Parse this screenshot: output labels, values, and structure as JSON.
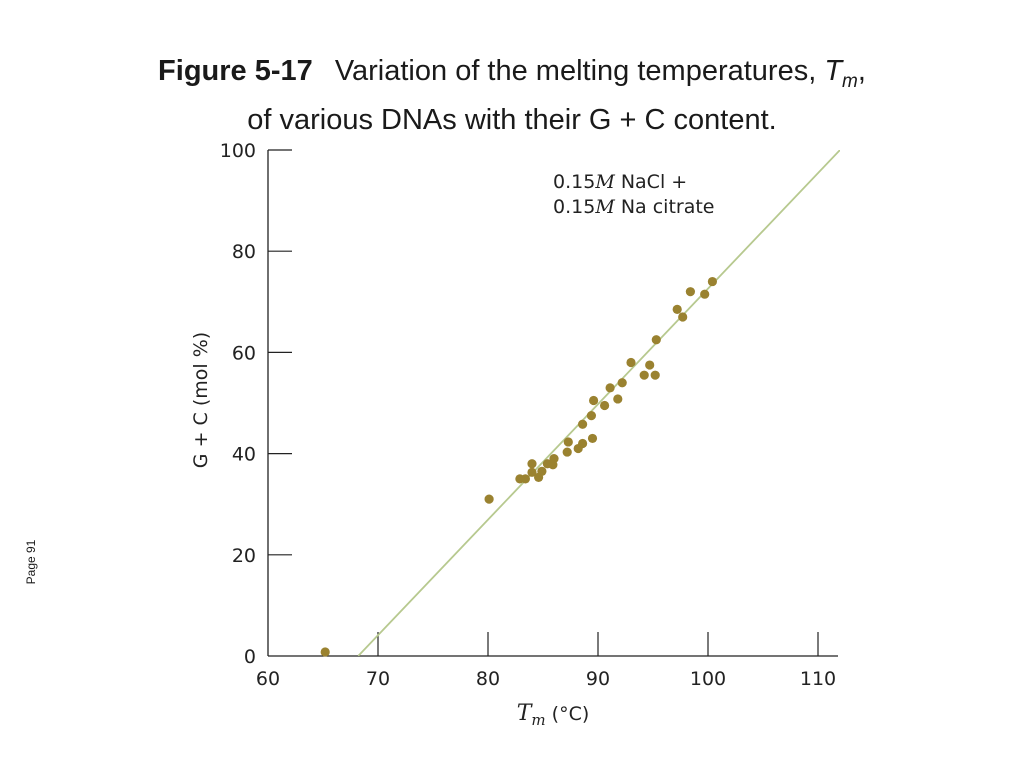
{
  "caption": {
    "label": "Figure 5-17",
    "text_pre": "Variation of the melting temperatures,",
    "tm_symbol": "T",
    "tm_subscript": "m",
    "text_post_comma": ",",
    "line2": "of various DNAs with their G + C content."
  },
  "page_label": "Page 91",
  "chart_data": {
    "type": "scatter",
    "title": "",
    "xlabel": "Tm (°C)",
    "xlabel_parts": {
      "symbol": "T",
      "subscript": "m",
      "unit": " (°C)"
    },
    "ylabel": "G + C (mol %)",
    "xlim": [
      60,
      112
    ],
    "ylim": [
      0,
      100
    ],
    "x_ticks": [
      60,
      70,
      80,
      90,
      100,
      110
    ],
    "y_ticks": [
      0,
      20,
      40,
      60,
      80,
      100
    ],
    "grid": false,
    "legend": "none",
    "annotation": {
      "line1": {
        "num": "0.15",
        "unit": "M",
        "rest": " NaCl +"
      },
      "line2": {
        "num": "0.15",
        "unit": "M",
        "rest": " Na citrate"
      }
    },
    "fit_line": {
      "x": [
        68.2,
        112
      ],
      "y": [
        0,
        100
      ]
    },
    "colors": {
      "points": "#9a8230",
      "fit_line": "#b7c98f",
      "axis": "#222222"
    },
    "points": [
      {
        "x": 65.2,
        "y": 0.8
      },
      {
        "x": 80.1,
        "y": 31.0
      },
      {
        "x": 82.9,
        "y": 35.0
      },
      {
        "x": 83.4,
        "y": 35.0
      },
      {
        "x": 84.0,
        "y": 36.3
      },
      {
        "x": 84.0,
        "y": 38.0
      },
      {
        "x": 84.6,
        "y": 35.3
      },
      {
        "x": 84.9,
        "y": 36.5
      },
      {
        "x": 85.4,
        "y": 38.0
      },
      {
        "x": 85.9,
        "y": 37.8
      },
      {
        "x": 86.0,
        "y": 39.0
      },
      {
        "x": 87.2,
        "y": 40.3
      },
      {
        "x": 87.3,
        "y": 42.3
      },
      {
        "x": 88.2,
        "y": 41.0
      },
      {
        "x": 88.6,
        "y": 42.0
      },
      {
        "x": 88.6,
        "y": 45.8
      },
      {
        "x": 89.5,
        "y": 43.0
      },
      {
        "x": 89.4,
        "y": 47.5
      },
      {
        "x": 89.6,
        "y": 50.5
      },
      {
        "x": 90.6,
        "y": 49.5
      },
      {
        "x": 91.1,
        "y": 53.0
      },
      {
        "x": 91.8,
        "y": 50.8
      },
      {
        "x": 92.2,
        "y": 54.0
      },
      {
        "x": 93.0,
        "y": 58.0
      },
      {
        "x": 94.2,
        "y": 55.5
      },
      {
        "x": 94.7,
        "y": 57.5
      },
      {
        "x": 95.2,
        "y": 55.5
      },
      {
        "x": 95.3,
        "y": 62.5
      },
      {
        "x": 97.2,
        "y": 68.5
      },
      {
        "x": 97.7,
        "y": 67.0
      },
      {
        "x": 98.4,
        "y": 72.0
      },
      {
        "x": 99.7,
        "y": 71.5
      },
      {
        "x": 100.4,
        "y": 74.0
      }
    ]
  }
}
